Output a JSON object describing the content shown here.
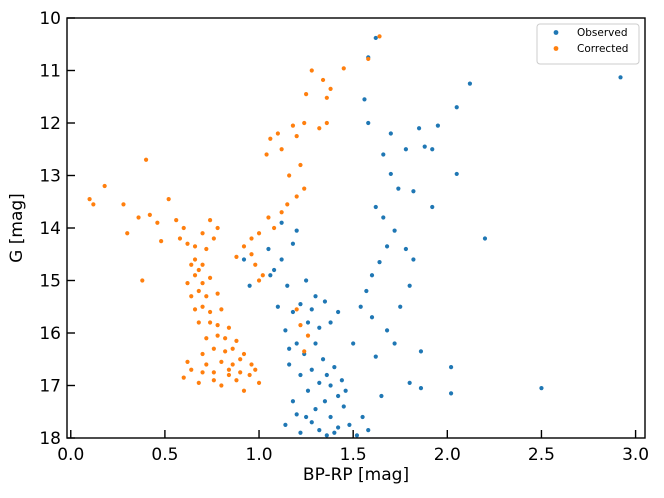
{
  "chart_data": {
    "type": "scatter",
    "title": "",
    "xlabel": "BP-RP [mag]",
    "ylabel": "G [mag]",
    "xlim": [
      -0.02,
      3.05
    ],
    "ylim": [
      18,
      10
    ],
    "y_inverted": true,
    "grid": false,
    "legend_position": "top-right",
    "x_ticks": [
      {
        "value": 0.0,
        "label": "0.0"
      },
      {
        "value": 0.5,
        "label": "0.5"
      },
      {
        "value": 1.0,
        "label": "1.0"
      },
      {
        "value": 1.5,
        "label": "1.5"
      },
      {
        "value": 2.0,
        "label": "2.0"
      },
      {
        "value": 2.5,
        "label": "2.5"
      },
      {
        "value": 3.0,
        "label": "3.0"
      }
    ],
    "y_ticks": [
      {
        "value": 10,
        "label": "10"
      },
      {
        "value": 11,
        "label": "11"
      },
      {
        "value": 12,
        "label": "12"
      },
      {
        "value": 13,
        "label": "13"
      },
      {
        "value": 14,
        "label": "14"
      },
      {
        "value": 15,
        "label": "15"
      },
      {
        "value": 16,
        "label": "16"
      },
      {
        "value": 17,
        "label": "17"
      },
      {
        "value": 18,
        "label": "18"
      }
    ],
    "series": [
      {
        "name": "Observed",
        "color": "#1f77b4",
        "points": [
          [
            1.62,
            10.38
          ],
          [
            1.58,
            10.75
          ],
          [
            1.56,
            11.55
          ],
          [
            1.58,
            12.0
          ],
          [
            1.66,
            12.6
          ],
          [
            1.7,
            12.97
          ],
          [
            1.74,
            13.25
          ],
          [
            1.62,
            13.6
          ],
          [
            1.66,
            13.8
          ],
          [
            1.72,
            14.05
          ],
          [
            1.68,
            14.35
          ],
          [
            1.64,
            14.65
          ],
          [
            1.6,
            14.9
          ],
          [
            1.57,
            15.2
          ],
          [
            1.54,
            15.5
          ],
          [
            1.7,
            12.2
          ],
          [
            1.78,
            12.5
          ],
          [
            1.85,
            12.1
          ],
          [
            1.95,
            12.05
          ],
          [
            1.88,
            12.45
          ],
          [
            1.92,
            12.5
          ],
          [
            2.05,
            11.7
          ],
          [
            2.12,
            11.25
          ],
          [
            2.05,
            12.97
          ],
          [
            1.82,
            13.3
          ],
          [
            1.92,
            13.6
          ],
          [
            2.2,
            14.2
          ],
          [
            1.78,
            14.4
          ],
          [
            1.82,
            14.6
          ],
          [
            1.8,
            15.1
          ],
          [
            1.75,
            15.5
          ],
          [
            2.92,
            11.13
          ],
          [
            2.5,
            17.05
          ],
          [
            1.8,
            16.95
          ],
          [
            1.86,
            17.05
          ],
          [
            2.02,
            17.15
          ],
          [
            2.02,
            16.65
          ],
          [
            1.86,
            16.35
          ],
          [
            1.62,
            16.45
          ],
          [
            1.72,
            16.2
          ],
          [
            1.68,
            15.95
          ],
          [
            1.6,
            15.7
          ],
          [
            1.65,
            17.2
          ],
          [
            1.5,
            16.2
          ],
          [
            1.05,
            14.4
          ],
          [
            1.08,
            14.8
          ],
          [
            1.12,
            14.6
          ],
          [
            1.15,
            15.1
          ],
          [
            1.1,
            15.5
          ],
          [
            1.06,
            14.9
          ],
          [
            0.95,
            15.1
          ],
          [
            0.92,
            14.6
          ],
          [
            1.18,
            14.3
          ],
          [
            1.12,
            13.9
          ],
          [
            1.2,
            14.05
          ],
          [
            1.35,
            15.4
          ],
          [
            1.42,
            15.6
          ],
          [
            1.38,
            15.8
          ],
          [
            1.3,
            15.3
          ],
          [
            1.25,
            15.0
          ],
          [
            1.42,
            17.2
          ],
          [
            1.45,
            17.4
          ],
          [
            1.55,
            17.6
          ],
          [
            1.48,
            17.75
          ],
          [
            1.58,
            17.85
          ],
          [
            1.52,
            17.95
          ],
          [
            1.4,
            17.9
          ],
          [
            1.32,
            17.85
          ],
          [
            1.28,
            17.7
          ],
          [
            1.2,
            17.55
          ],
          [
            1.18,
            17.3
          ],
          [
            1.26,
            17.1
          ],
          [
            1.22,
            16.8
          ],
          [
            1.16,
            16.6
          ],
          [
            1.24,
            16.4
          ],
          [
            1.3,
            16.2
          ],
          [
            1.34,
            16.5
          ],
          [
            1.36,
            16.8
          ],
          [
            1.38,
            17.0
          ],
          [
            1.32,
            16.95
          ],
          [
            1.4,
            16.65
          ],
          [
            1.44,
            16.9
          ],
          [
            1.46,
            17.1
          ],
          [
            1.35,
            17.3
          ],
          [
            1.3,
            17.45
          ],
          [
            1.25,
            17.6
          ],
          [
            1.38,
            17.6
          ],
          [
            1.42,
            17.8
          ],
          [
            1.36,
            17.95
          ],
          [
            1.22,
            17.9
          ],
          [
            1.14,
            17.75
          ],
          [
            1.2,
            16.2
          ],
          [
            1.26,
            15.8
          ],
          [
            1.18,
            15.6
          ],
          [
            1.22,
            15.45
          ],
          [
            1.28,
            15.55
          ],
          [
            1.32,
            15.9
          ],
          [
            1.14,
            15.95
          ],
          [
            1.16,
            16.3
          ],
          [
            1.28,
            16.7
          ]
        ]
      },
      {
        "name": "Corrected",
        "color": "#ff7f0e",
        "points": [
          [
            1.64,
            10.35
          ],
          [
            1.58,
            10.78
          ],
          [
            1.45,
            10.96
          ],
          [
            1.38,
            11.35
          ],
          [
            1.36,
            11.52
          ],
          [
            1.34,
            11.18
          ],
          [
            1.28,
            11.0
          ],
          [
            1.25,
            11.45
          ],
          [
            1.36,
            12.0
          ],
          [
            1.32,
            12.1
          ],
          [
            1.24,
            12.0
          ],
          [
            1.2,
            12.25
          ],
          [
            1.18,
            12.05
          ],
          [
            1.1,
            12.2
          ],
          [
            1.06,
            12.3
          ],
          [
            1.04,
            12.6
          ],
          [
            1.12,
            12.5
          ],
          [
            1.22,
            12.8
          ],
          [
            1.16,
            13.0
          ],
          [
            1.24,
            13.25
          ],
          [
            1.2,
            13.4
          ],
          [
            1.12,
            13.7
          ],
          [
            1.08,
            14.0
          ],
          [
            1.15,
            13.55
          ],
          [
            1.05,
            13.8
          ],
          [
            1.0,
            14.1
          ],
          [
            0.96,
            14.2
          ],
          [
            0.92,
            14.35
          ],
          [
            0.88,
            14.55
          ],
          [
            0.98,
            14.7
          ],
          [
            1.02,
            14.9
          ],
          [
            0.1,
            13.45
          ],
          [
            0.12,
            13.55
          ],
          [
            0.18,
            13.2
          ],
          [
            0.28,
            13.55
          ],
          [
            0.3,
            14.1
          ],
          [
            0.36,
            13.8
          ],
          [
            0.4,
            12.7
          ],
          [
            0.42,
            13.75
          ],
          [
            0.46,
            13.9
          ],
          [
            0.48,
            14.25
          ],
          [
            0.52,
            13.45
          ],
          [
            0.56,
            13.85
          ],
          [
            0.58,
            14.2
          ],
          [
            0.62,
            14.3
          ],
          [
            0.6,
            14.0
          ],
          [
            0.38,
            15.0
          ],
          [
            0.6,
            16.85
          ],
          [
            0.62,
            16.55
          ],
          [
            0.64,
            16.7
          ],
          [
            0.68,
            16.95
          ],
          [
            0.7,
            16.75
          ],
          [
            0.72,
            16.6
          ],
          [
            0.76,
            16.9
          ],
          [
            0.8,
            17.0
          ],
          [
            0.84,
            16.8
          ],
          [
            0.88,
            16.9
          ],
          [
            0.92,
            17.1
          ],
          [
            0.95,
            16.8
          ],
          [
            0.98,
            16.7
          ],
          [
            1.0,
            16.95
          ],
          [
            0.9,
            16.5
          ],
          [
            0.86,
            16.3
          ],
          [
            0.82,
            16.1
          ],
          [
            0.78,
            15.85
          ],
          [
            0.74,
            15.6
          ],
          [
            0.72,
            15.3
          ],
          [
            0.7,
            15.05
          ],
          [
            0.68,
            14.8
          ],
          [
            0.66,
            14.6
          ],
          [
            0.72,
            14.4
          ],
          [
            0.76,
            14.2
          ],
          [
            0.78,
            14.0
          ],
          [
            0.74,
            13.85
          ],
          [
            0.7,
            14.1
          ],
          [
            0.66,
            14.35
          ],
          [
            0.64,
            14.7
          ],
          [
            0.68,
            15.2
          ],
          [
            0.7,
            15.5
          ],
          [
            0.74,
            15.8
          ],
          [
            0.78,
            16.05
          ],
          [
            0.82,
            16.35
          ],
          [
            0.86,
            16.6
          ],
          [
            0.9,
            16.75
          ],
          [
            0.8,
            16.55
          ],
          [
            0.76,
            16.3
          ],
          [
            0.72,
            16.1
          ],
          [
            0.68,
            15.8
          ],
          [
            0.66,
            15.55
          ],
          [
            0.64,
            15.3
          ],
          [
            0.62,
            15.05
          ],
          [
            0.66,
            14.9
          ],
          [
            0.7,
            14.7
          ],
          [
            0.74,
            14.95
          ],
          [
            0.78,
            15.25
          ],
          [
            0.8,
            15.55
          ],
          [
            0.84,
            15.9
          ],
          [
            0.88,
            16.15
          ],
          [
            0.92,
            16.4
          ],
          [
            0.96,
            16.6
          ],
          [
            0.84,
            16.7
          ],
          [
            0.76,
            16.75
          ],
          [
            0.7,
            16.4
          ],
          [
            1.2,
            15.55
          ],
          [
            1.22,
            15.85
          ],
          [
            1.26,
            16.05
          ],
          [
            1.24,
            16.35
          ],
          [
            0.96,
            14.5
          ],
          [
            1.0,
            15.0
          ]
        ]
      }
    ]
  }
}
